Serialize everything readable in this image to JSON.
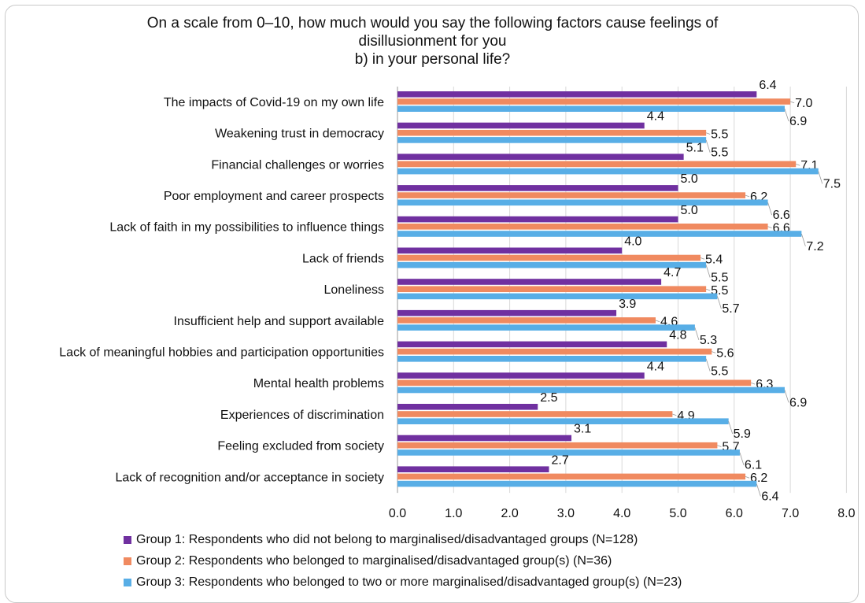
{
  "colors": {
    "g1": "#7030a0",
    "g2": "#f08a60",
    "g3": "#58aee6",
    "grid": "#d9d9d9",
    "axis": "#9a9a9a"
  },
  "chart_data": {
    "type": "bar",
    "orientation": "horizontal",
    "title_lines": [
      "On a scale from 0–10, how much would you say the following factors cause feelings of",
      "disillusionment for you",
      "b) in your personal life?"
    ],
    "categories": [
      "The impacts of Covid-19 on my own life",
      "Weakening trust in democracy",
      "Financial challenges or worries",
      "Poor employment and career prospects",
      "Lack of faith in my possibilities to influence things",
      "Lack of friends",
      "Loneliness",
      "Insufficient help and support available",
      "Lack of meaningful hobbies and participation opportunities",
      "Mental health problems",
      "Experiences of discrimination",
      "Feeling excluded from society",
      "Lack of recognition and/or acceptance in society"
    ],
    "series": [
      {
        "name": "Group 1: Respondents who did not belong to marginalised/disadvantaged groups (N=128)",
        "values": [
          6.4,
          4.4,
          5.1,
          5.0,
          5.0,
          4.0,
          4.7,
          3.9,
          4.8,
          4.4,
          2.5,
          3.1,
          2.7
        ]
      },
      {
        "name": "Group 2: Respondents who belonged to marginalised/disadvantaged group(s) (N=36)",
        "values": [
          7.0,
          5.5,
          7.1,
          6.2,
          6.6,
          5.4,
          5.5,
          4.6,
          5.6,
          6.3,
          4.9,
          5.7,
          6.2
        ]
      },
      {
        "name": "Group 3: Respondents who belonged to two or more marginalised/disadvantaged group(s) (N=23)",
        "values": [
          6.9,
          5.5,
          7.5,
          6.6,
          7.2,
          5.5,
          5.7,
          5.3,
          5.5,
          6.9,
          5.9,
          6.1,
          6.4
        ]
      }
    ],
    "xlim": [
      0,
      8
    ],
    "xticks": [
      "0.0",
      "1.0",
      "2.0",
      "3.0",
      "4.0",
      "5.0",
      "6.0",
      "7.0",
      "8.0"
    ],
    "grid": true,
    "legend_position": "bottom"
  }
}
